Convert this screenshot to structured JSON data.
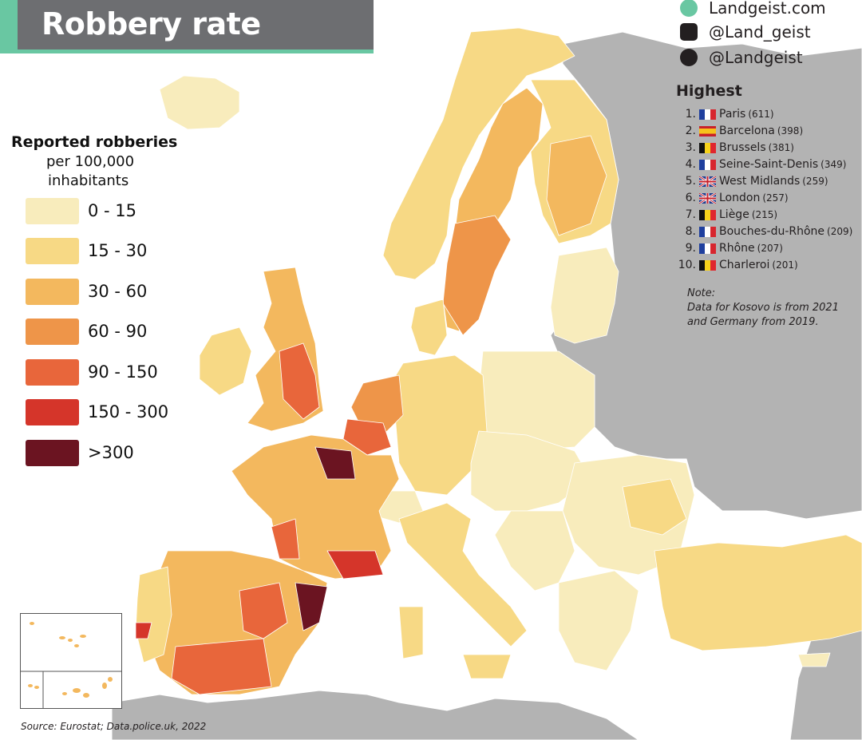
{
  "title": "Robbery rate",
  "social": {
    "website": "Landgeist.com",
    "instagram": "@Land_geist",
    "twitter": "@Landgeist"
  },
  "legend": {
    "title": "Reported robberies",
    "subtitle_1": "per 100,000",
    "subtitle_2": "inhabitants",
    "items": [
      {
        "label": "0  -  15",
        "color": "#f8ecbc"
      },
      {
        "label": "15  -  30",
        "color": "#f7d985"
      },
      {
        "label": "30  -  60",
        "color": "#f3b85e"
      },
      {
        "label": "60  -  90",
        "color": "#ee9549"
      },
      {
        "label": "90  -  150",
        "color": "#e8663b"
      },
      {
        "label": "150 - 300",
        "color": "#d5352a"
      },
      {
        "label": ">300",
        "color": "#6b1421"
      }
    ]
  },
  "highest": {
    "title": "Highest",
    "items": [
      {
        "rank": "1.",
        "flag": "france",
        "name": "Paris",
        "value": "(611)"
      },
      {
        "rank": "2.",
        "flag": "spain",
        "name": "Barcelona",
        "value": "(398)"
      },
      {
        "rank": "3.",
        "flag": "belgium",
        "name": "Brussels",
        "value": "(381)"
      },
      {
        "rank": "4.",
        "flag": "france",
        "name": "Seine-Saint-Denis",
        "value": "(349)"
      },
      {
        "rank": "5.",
        "flag": "uk",
        "name": "West Midlands",
        "value": "(259)"
      },
      {
        "rank": "6.",
        "flag": "uk",
        "name": "London",
        "value": "(257)"
      },
      {
        "rank": "7.",
        "flag": "belgium",
        "name": "Liège",
        "value": "(215)"
      },
      {
        "rank": "8.",
        "flag": "france",
        "name": "Bouches-du-Rhône",
        "value": "(209)"
      },
      {
        "rank": "9.",
        "flag": "france",
        "name": "Rhône",
        "value": "(207)"
      },
      {
        "rank": "10.",
        "flag": "belgium",
        "name": "Charleroi",
        "value": "(201)"
      }
    ]
  },
  "note": {
    "label": "Note:",
    "line1": "Data for Kosovo is from 2021",
    "line2": "and Germany from 2019."
  },
  "source": "Source: Eurostat; Data.police.uk, 2022",
  "colors": {
    "sea": "#ffffff",
    "non_covered": "#b3b3b3",
    "title_bg": "#6d6e71",
    "accent": "#69c7a2"
  }
}
